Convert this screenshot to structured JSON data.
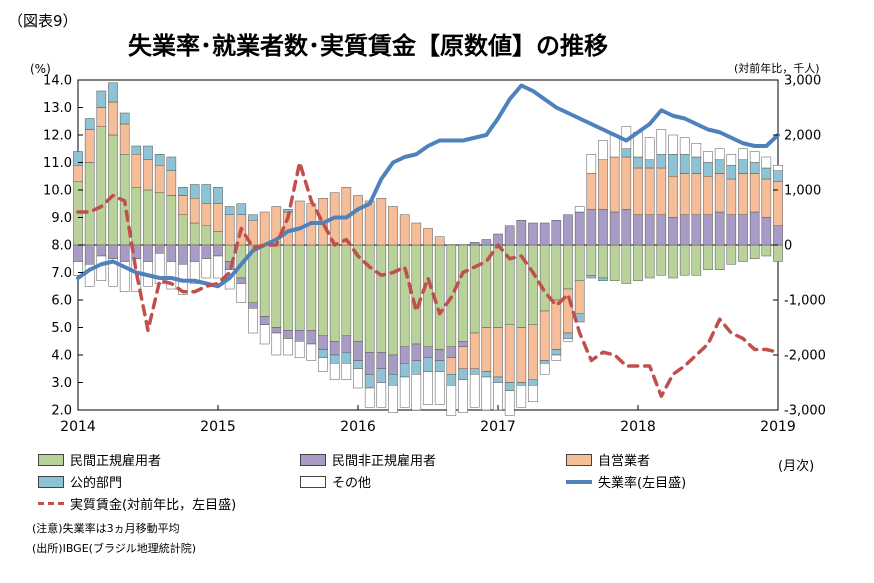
{
  "figure_label": "（図表9）",
  "title": "失業率･就業者数･実質賃金【原数値】の推移",
  "unit_left": "(%)",
  "unit_right": "(対前年比，千人)",
  "x_unit": "(月次)",
  "note": "(注意)失業率は3ヵ月移動平均",
  "source": "(出所)IBGE(ブラジル地理統計院)",
  "colors": {
    "formal": "#b9d29a",
    "informal": "#a89cc6",
    "self": "#f6bd99",
    "public": "#8dc3d4",
    "other": "#ffffff",
    "wage": "#c0504d",
    "unemp": "#4f81bd"
  },
  "legend": [
    {
      "key": "formal",
      "label": "民間正規雇用者",
      "kind": "bar"
    },
    {
      "key": "informal",
      "label": "民間非正規雇用者",
      "kind": "bar"
    },
    {
      "key": "self",
      "label": "自営業者",
      "kind": "bar"
    },
    {
      "key": "public",
      "label": "公的部門",
      "kind": "bar"
    },
    {
      "key": "other",
      "label": "その他",
      "kind": "bar"
    },
    {
      "key": "unemp",
      "label": "失業率(左目盛)",
      "kind": "line"
    },
    {
      "key": "wage",
      "label": "実質賃金(対前年比，左目盛)",
      "kind": "dash"
    }
  ],
  "chart_data": {
    "type": "bar",
    "x_axis": {
      "ticks": [
        "2014",
        "2015",
        "2016",
        "2017",
        "2018",
        "2019"
      ],
      "start": "2014-01",
      "end": "2019-01"
    },
    "y_left": {
      "min": 2.0,
      "max": 14.0,
      "step": 1.0,
      "ticks": [
        "2.0",
        "3.0",
        "4.0",
        "5.0",
        "6.0",
        "7.0",
        "8.0",
        "9.0",
        "10.0",
        "11.0",
        "12.0",
        "13.0",
        "14.0"
      ]
    },
    "y_right": {
      "min": -3000,
      "max": 3000,
      "step": 1000,
      "ticks": [
        "-3,000",
        "-2,000",
        "-1,000",
        "0",
        "1,000",
        "2,000",
        "3,000"
      ]
    },
    "months": [
      "2014-01",
      "2014-02",
      "2014-03",
      "2014-04",
      "2014-05",
      "2014-06",
      "2014-07",
      "2014-08",
      "2014-09",
      "2014-10",
      "2014-11",
      "2014-12",
      "2015-01",
      "2015-02",
      "2015-03",
      "2015-04",
      "2015-05",
      "2015-06",
      "2015-07",
      "2015-08",
      "2015-09",
      "2015-10",
      "2015-11",
      "2015-12",
      "2016-01",
      "2016-02",
      "2016-03",
      "2016-04",
      "2016-05",
      "2016-06",
      "2016-07",
      "2016-08",
      "2016-09",
      "2016-10",
      "2016-11",
      "2016-12",
      "2017-01",
      "2017-02",
      "2017-03",
      "2017-04",
      "2017-05",
      "2017-06",
      "2017-07",
      "2017-08",
      "2017-09",
      "2017-10",
      "2017-11",
      "2017-12",
      "2018-01",
      "2018-02",
      "2018-03",
      "2018-04",
      "2018-05",
      "2018-06",
      "2018-07",
      "2018-08",
      "2018-09",
      "2018-10",
      "2018-11",
      "2018-12",
      "2019-01"
    ],
    "series": [
      {
        "key": "formal",
        "name": "民間正規雇用者",
        "axis": "right",
        "values": [
          1150,
          1500,
          2150,
          2000,
          1650,
          1050,
          1000,
          950,
          900,
          550,
          400,
          350,
          250,
          -300,
          -600,
          -1050,
          -1300,
          -1500,
          -1550,
          -1550,
          -1550,
          -1650,
          -1750,
          -1650,
          -1750,
          -1950,
          -1950,
          -2000,
          -1850,
          -1800,
          -1850,
          -1900,
          -1850,
          -1750,
          -1600,
          -1500,
          -1500,
          -1450,
          -1500,
          -1450,
          -1200,
          -1000,
          -800,
          -650,
          -550,
          -600,
          -650,
          -700,
          -650,
          -600,
          -550,
          -600,
          -550,
          -550,
          -450,
          -450,
          -350,
          -300,
          -250,
          -200,
          -300
        ]
      },
      {
        "key": "informal",
        "name": "民間非正規雇用者",
        "axis": "right",
        "values": [
          -300,
          -350,
          -200,
          -250,
          -300,
          -250,
          -300,
          -150,
          -300,
          -350,
          -300,
          -250,
          -200,
          -150,
          -100,
          -100,
          -150,
          -100,
          -150,
          -200,
          -250,
          -250,
          -250,
          -300,
          -350,
          -400,
          -300,
          -350,
          -300,
          -300,
          -200,
          -200,
          -200,
          -100,
          50,
          100,
          200,
          350,
          450,
          400,
          400,
          450,
          550,
          600,
          650,
          650,
          600,
          650,
          550,
          550,
          550,
          500,
          550,
          550,
          550,
          600,
          550,
          550,
          600,
          500,
          350
        ]
      },
      {
        "key": "self",
        "name": "自営業者",
        "axis": "right",
        "values": [
          300,
          600,
          350,
          600,
          550,
          600,
          550,
          500,
          450,
          350,
          450,
          400,
          500,
          550,
          550,
          450,
          600,
          700,
          600,
          800,
          750,
          850,
          950,
          1050,
          900,
          800,
          850,
          700,
          550,
          400,
          300,
          150,
          -300,
          -400,
          -650,
          -800,
          -900,
          -1050,
          -1000,
          -1000,
          -900,
          -900,
          -800,
          -600,
          650,
          900,
          1000,
          950,
          850,
          850,
          850,
          750,
          750,
          750,
          700,
          700,
          650,
          750,
          700,
          700,
          800
        ]
      },
      {
        "key": "public",
        "name": "公的部門",
        "axis": "right",
        "values": [
          250,
          200,
          300,
          350,
          200,
          150,
          250,
          200,
          250,
          150,
          250,
          350,
          300,
          150,
          200,
          100,
          0,
          0,
          50,
          0,
          0,
          -150,
          -150,
          -200,
          -150,
          -250,
          -250,
          -200,
          -250,
          -250,
          -250,
          -200,
          -200,
          -200,
          -100,
          -100,
          -100,
          -150,
          -50,
          -100,
          -50,
          -100,
          -100,
          -150,
          -50,
          -50,
          0,
          150,
          200,
          150,
          250,
          400,
          350,
          300,
          250,
          250,
          250,
          250,
          200,
          200,
          200
        ]
      },
      {
        "key": "other",
        "name": "その他",
        "axis": "right",
        "values": [
          -250,
          -400,
          -450,
          -500,
          -550,
          -600,
          -450,
          -550,
          -500,
          -550,
          -400,
          -350,
          -400,
          -350,
          -350,
          -450,
          -350,
          -400,
          -300,
          -300,
          -300,
          -250,
          -300,
          -300,
          -350,
          -350,
          -450,
          -500,
          -550,
          -650,
          -600,
          -600,
          -550,
          -600,
          -600,
          -600,
          -500,
          -450,
          -400,
          -300,
          -200,
          -100,
          -50,
          100,
          350,
          350,
          400,
          400,
          450,
          400,
          450,
          350,
          300,
          250,
          200,
          200,
          200,
          200,
          200,
          200,
          100
        ]
      },
      {
        "key": "unemp",
        "name": "失業率(左目盛)",
        "axis": "left",
        "type": "line",
        "values": [
          6.8,
          7.1,
          7.3,
          7.4,
          7.2,
          7.0,
          6.9,
          6.8,
          6.8,
          6.7,
          6.7,
          6.6,
          6.5,
          6.8,
          7.3,
          7.8,
          8.0,
          8.2,
          8.5,
          8.6,
          8.8,
          8.8,
          9.0,
          9.0,
          9.3,
          9.5,
          10.4,
          11.0,
          11.2,
          11.3,
          11.6,
          11.8,
          11.8,
          11.8,
          11.9,
          12.0,
          12.6,
          13.3,
          13.8,
          13.6,
          13.3,
          13.0,
          12.8,
          12.6,
          12.4,
          12.2,
          12.0,
          11.8,
          12.1,
          12.4,
          12.9,
          12.7,
          12.6,
          12.4,
          12.2,
          12.1,
          11.9,
          11.7,
          11.6,
          11.6,
          12.0
        ]
      },
      {
        "key": "wage",
        "name": "実質賃金(対前年比，左目盛)",
        "axis": "left",
        "type": "line",
        "dashed": true,
        "values": [
          9.2,
          9.2,
          9.4,
          9.8,
          9.6,
          7.0,
          4.9,
          6.7,
          6.6,
          6.3,
          6.3,
          6.5,
          6.6,
          7.0,
          8.6,
          7.9,
          8.0,
          8.0,
          9.0,
          11.0,
          9.6,
          8.8,
          8.0,
          8.2,
          7.6,
          7.2,
          6.9,
          7.0,
          7.2,
          5.6,
          6.8,
          5.5,
          6.1,
          7.0,
          7.2,
          7.4,
          8.0,
          7.5,
          7.6,
          7.0,
          6.3,
          5.8,
          6.2,
          4.8,
          3.8,
          4.1,
          4.0,
          3.6,
          3.6,
          3.6,
          2.5,
          3.3,
          3.6,
          4.0,
          4.4,
          5.3,
          4.8,
          4.6,
          4.2,
          4.2,
          4.1
        ]
      }
    ]
  }
}
